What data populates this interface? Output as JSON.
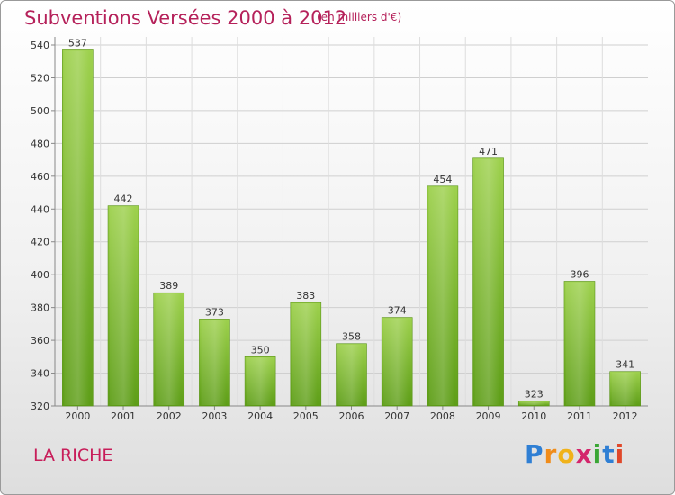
{
  "chart_data": {
    "type": "bar",
    "title": "Subventions Versées 2000 à 2012",
    "subtitle": "(en milliers d'€)",
    "categories": [
      "2000",
      "2001",
      "2002",
      "2003",
      "2004",
      "2005",
      "2006",
      "2007",
      "2008",
      "2009",
      "2010",
      "2011",
      "2012"
    ],
    "values": [
      537,
      442,
      389,
      373,
      350,
      383,
      358,
      374,
      454,
      471,
      323,
      396,
      341
    ],
    "value_labels": [
      "537",
      "442",
      "389",
      "373",
      "350",
      "383",
      "358",
      "374",
      "454",
      "471",
      "323",
      "396",
      "341"
    ],
    "yticks": [
      "320",
      "340",
      "360",
      "380",
      "400",
      "420",
      "440",
      "460",
      "480",
      "500",
      "520",
      "540"
    ],
    "ylim": [
      320,
      540
    ],
    "grid": true,
    "bar_color": "#7cc242"
  },
  "location_label": "LA RICHE",
  "logo": {
    "letters": [
      "P",
      "r",
      "o",
      "x",
      "i",
      "t",
      "i"
    ]
  }
}
